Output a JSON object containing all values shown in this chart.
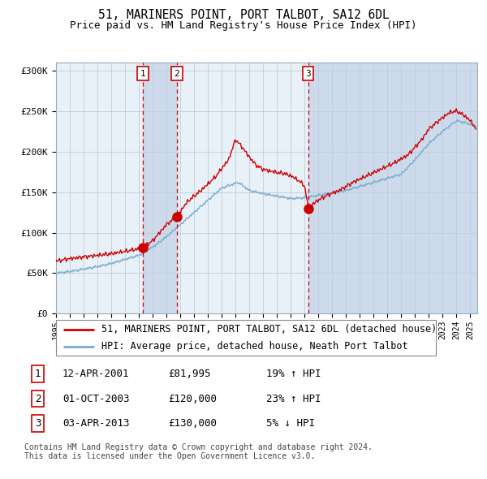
{
  "title": "51, MARINERS POINT, PORT TALBOT, SA12 6DL",
  "subtitle": "Price paid vs. HM Land Registry's House Price Index (HPI)",
  "ylim": [
    0,
    310000
  ],
  "yticks": [
    0,
    50000,
    100000,
    150000,
    200000,
    250000,
    300000
  ],
  "ytick_labels": [
    "£0",
    "£50K",
    "£100K",
    "£150K",
    "£200K",
    "£250K",
    "£300K"
  ],
  "xstart": 1995.0,
  "xend": 2025.5,
  "sale_dates": [
    2001.28,
    2003.75,
    2013.26
  ],
  "sale_prices": [
    81995,
    120000,
    130000
  ],
  "sale_labels": [
    "1",
    "2",
    "3"
  ],
  "table_rows": [
    [
      "1",
      "12-APR-2001",
      "£81,995",
      "19% ↑ HPI"
    ],
    [
      "2",
      "01-OCT-2003",
      "£120,000",
      "23% ↑ HPI"
    ],
    [
      "3",
      "03-APR-2013",
      "£130,000",
      "5% ↓ HPI"
    ]
  ],
  "legend_line1": "51, MARINERS POINT, PORT TALBOT, SA12 6DL (detached house)",
  "legend_line2": "HPI: Average price, detached house, Neath Port Talbot",
  "footnote": "Contains HM Land Registry data © Crown copyright and database right 2024.\nThis data is licensed under the Open Government Licence v3.0.",
  "line_color_red": "#cc0000",
  "line_color_blue": "#7aaacf",
  "chart_bg": "#e8f0f8",
  "shade_color": "#ccdaeb",
  "grid_color": "#c0cdd8",
  "marker_color": "#cc0000",
  "dashed_line_color": "#cc0000",
  "box_color": "#cc0000",
  "title_fontsize": 10.5,
  "subtitle_fontsize": 9,
  "tick_fontsize": 8,
  "legend_fontsize": 8.5,
  "table_fontsize": 9,
  "footnote_fontsize": 7
}
